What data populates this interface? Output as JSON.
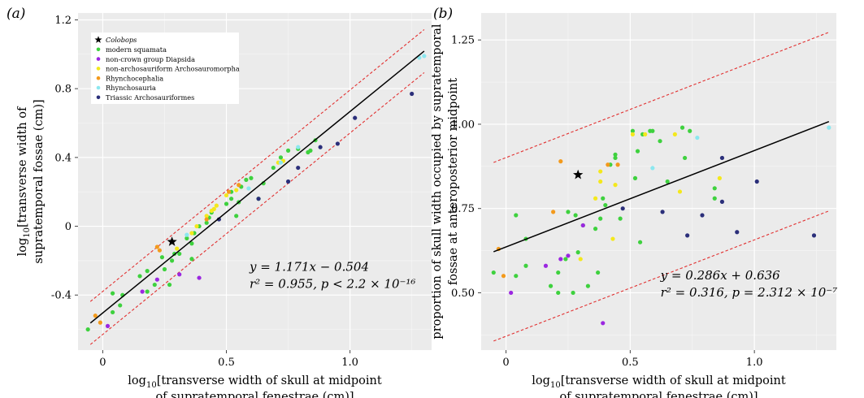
{
  "chart_data": [
    {
      "type": "scatter",
      "panel_label": "(a)",
      "xlabel": [
        "log10[transverse width of skull at midpoint",
        "of supratemporal fenestrae (cm)]"
      ],
      "ylabel": [
        "log10[transverse width of",
        "supratemporal fossae (cm)]"
      ],
      "xlim": [
        -0.1,
        1.33
      ],
      "ylim": [
        -0.72,
        1.24
      ],
      "xticks": [
        0,
        0.5,
        1.0
      ],
      "xtick_labels": [
        "0",
        "0.5",
        "1.0"
      ],
      "yticks": [
        -0.4,
        0,
        0.4,
        0.8,
        1.2
      ],
      "ytick_labels": [
        "-0.4",
        "0",
        "0.4",
        "0.8",
        "1.2"
      ],
      "grid": true,
      "legend_position": "top-left",
      "legend": [
        {
          "label": "Colobops",
          "marker": "star",
          "color": "#000000",
          "italic": true
        },
        {
          "label": "modern squamata",
          "marker": "dot",
          "color": "#3ed13e"
        },
        {
          "label": "non-crown group Diapsida",
          "marker": "dot",
          "color": "#9b27e0"
        },
        {
          "label": "non-archosauriform Archosauromorpha",
          "marker": "dot",
          "color": "#f4e81c"
        },
        {
          "label": "Rhynchocephalia",
          "marker": "dot",
          "color": "#f39a1c"
        },
        {
          "label": "Rhynchosauria",
          "marker": "dot",
          "color": "#8ce7ef"
        },
        {
          "label": "Triassic Archosauriformes",
          "marker": "dot",
          "color": "#2b2f7a"
        }
      ],
      "regression": {
        "slope": 1.171,
        "intercept": -0.504,
        "x_range": [
          -0.05,
          1.3
        ],
        "color": "#000000"
      },
      "confidence_band": {
        "lower_offset": -0.125,
        "upper_offset": 0.125,
        "x_range": [
          -0.05,
          1.3
        ],
        "color": "#e23030",
        "style": "dashed"
      },
      "annotation": [
        "y = 1.171x − 0.504",
        "r² = 0.955, p < 2.2 × 10⁻¹⁶"
      ],
      "series": [
        {
          "name": "Colobops",
          "marker": "star",
          "color": "#000000",
          "points": [
            [
              0.28,
              -0.09
            ]
          ]
        },
        {
          "name": "modern squamata",
          "color": "#3ed13e",
          "points": [
            [
              -0.06,
              -0.6
            ],
            [
              0.04,
              -0.5
            ],
            [
              0.04,
              -0.39
            ],
            [
              0.07,
              -0.46
            ],
            [
              0.08,
              -0.4
            ],
            [
              0.15,
              -0.29
            ],
            [
              0.18,
              -0.26
            ],
            [
              0.18,
              -0.38
            ],
            [
              0.21,
              -0.34
            ],
            [
              0.24,
              -0.18
            ],
            [
              0.25,
              -0.25
            ],
            [
              0.27,
              -0.34
            ],
            [
              0.28,
              -0.2
            ],
            [
              0.29,
              -0.16
            ],
            [
              0.31,
              -0.16
            ],
            [
              0.34,
              -0.07
            ],
            [
              0.36,
              -0.1
            ],
            [
              0.36,
              -0.19
            ],
            [
              0.37,
              -0.04
            ],
            [
              0.39,
              0.0
            ],
            [
              0.42,
              0.02
            ],
            [
              0.43,
              0.05
            ],
            [
              0.44,
              0.08
            ],
            [
              0.5,
              0.13
            ],
            [
              0.52,
              0.16
            ],
            [
              0.52,
              0.2
            ],
            [
              0.54,
              0.06
            ],
            [
              0.55,
              0.14
            ],
            [
              0.56,
              0.23
            ],
            [
              0.58,
              0.27
            ],
            [
              0.6,
              0.28
            ],
            [
              0.63,
              0.16
            ],
            [
              0.65,
              0.25
            ],
            [
              0.69,
              0.34
            ],
            [
              0.72,
              0.4
            ],
            [
              0.75,
              0.44
            ],
            [
              0.79,
              0.45
            ],
            [
              0.83,
              0.43
            ],
            [
              0.84,
              0.44
            ],
            [
              0.86,
              0.5
            ]
          ]
        },
        {
          "name": "non-crown group Diapsida",
          "color": "#9b27e0",
          "points": [
            [
              0.02,
              -0.58
            ],
            [
              0.16,
              -0.38
            ],
            [
              0.22,
              -0.31
            ],
            [
              0.31,
              -0.28
            ],
            [
              0.39,
              -0.3
            ]
          ]
        },
        {
          "name": "non-archosauriform Archosauromorpha",
          "color": "#f4e81c",
          "points": [
            [
              0.3,
              -0.13
            ],
            [
              0.36,
              -0.04
            ],
            [
              0.38,
              0.0
            ],
            [
              0.42,
              0.06
            ],
            [
              0.44,
              0.09
            ],
            [
              0.45,
              0.1
            ],
            [
              0.46,
              0.12
            ],
            [
              0.5,
              0.18
            ],
            [
              0.54,
              0.21
            ],
            [
              0.71,
              0.37
            ],
            [
              0.73,
              0.38
            ]
          ]
        },
        {
          "name": "Rhynchocephalia",
          "color": "#f39a1c",
          "points": [
            [
              -0.03,
              -0.52
            ],
            [
              -0.01,
              -0.56
            ],
            [
              0.22,
              -0.12
            ],
            [
              0.23,
              -0.14
            ],
            [
              0.42,
              0.04
            ],
            [
              0.51,
              0.2
            ],
            [
              0.55,
              0.24
            ]
          ]
        },
        {
          "name": "Rhynchosauria",
          "color": "#8ce7ef",
          "points": [
            [
              0.34,
              -0.05
            ],
            [
              0.59,
              0.22
            ],
            [
              0.72,
              0.37
            ],
            [
              0.79,
              0.46
            ],
            [
              1.28,
              0.98
            ],
            [
              1.3,
              0.99
            ]
          ]
        },
        {
          "name": "Triassic Archosauriformes",
          "color": "#2b2f7a",
          "points": [
            [
              0.47,
              0.04
            ],
            [
              0.63,
              0.16
            ],
            [
              0.75,
              0.26
            ],
            [
              0.79,
              0.34
            ],
            [
              0.88,
              0.46
            ],
            [
              0.95,
              0.48
            ],
            [
              1.02,
              0.63
            ],
            [
              1.25,
              0.77
            ]
          ]
        }
      ]
    },
    {
      "type": "scatter",
      "panel_label": "(b)",
      "xlabel": [
        "log10[transverse width of skull at midpoint",
        "of supratemporal fenestrae (cm)]"
      ],
      "ylabel": [
        "proportion of skull width occupied by supratemporal",
        "fossae at anteroposterior midpoint"
      ],
      "xlim": [
        -0.1,
        1.33
      ],
      "ylim": [
        0.33,
        1.33
      ],
      "xticks": [
        0,
        0.5,
        1.0
      ],
      "xtick_labels": [
        "0",
        "0.5",
        "1.0"
      ],
      "yticks": [
        0.5,
        0.75,
        1.0,
        1.25
      ],
      "ytick_labels": [
        "0.50",
        "0.75",
        "1.00",
        "1.25"
      ],
      "grid": true,
      "regression": {
        "slope": 0.286,
        "intercept": 0.636,
        "x_range": [
          -0.05,
          1.3
        ],
        "color": "#000000"
      },
      "confidence_band": {
        "lower_offset": -0.265,
        "upper_offset": 0.265,
        "x_range": [
          -0.05,
          1.3
        ],
        "color": "#e23030",
        "style": "dashed"
      },
      "annotation": [
        "y = 0.286x + 0.636",
        "r² = 0.316, p = 2.312 × 10⁻⁷"
      ],
      "series": [
        {
          "name": "Colobops",
          "marker": "star",
          "color": "#000000",
          "points": [
            [
              0.29,
              0.85
            ]
          ]
        },
        {
          "name": "modern squamata",
          "color": "#3ed13e",
          "points": [
            [
              -0.05,
              0.56
            ],
            [
              0.04,
              0.55
            ],
            [
              0.04,
              0.73
            ],
            [
              0.08,
              0.66
            ],
            [
              0.08,
              0.58
            ],
            [
              0.18,
              0.52
            ],
            [
              0.21,
              0.5
            ],
            [
              0.21,
              0.56
            ],
            [
              0.24,
              0.6
            ],
            [
              0.25,
              0.74
            ],
            [
              0.27,
              0.5
            ],
            [
              0.28,
              0.73
            ],
            [
              0.29,
              0.62
            ],
            [
              0.31,
              0.7
            ],
            [
              0.33,
              0.52
            ],
            [
              0.36,
              0.69
            ],
            [
              0.37,
              0.56
            ],
            [
              0.38,
              0.72
            ],
            [
              0.39,
              0.78
            ],
            [
              0.4,
              0.76
            ],
            [
              0.42,
              0.88
            ],
            [
              0.44,
              0.9
            ],
            [
              0.44,
              0.91
            ],
            [
              0.46,
              0.72
            ],
            [
              0.51,
              0.98
            ],
            [
              0.52,
              0.84
            ],
            [
              0.53,
              0.92
            ],
            [
              0.54,
              0.65
            ],
            [
              0.55,
              0.97
            ],
            [
              0.58,
              0.98
            ],
            [
              0.59,
              0.98
            ],
            [
              0.62,
              0.95
            ],
            [
              0.65,
              0.83
            ],
            [
              0.71,
              0.99
            ],
            [
              0.72,
              0.9
            ],
            [
              0.74,
              0.98
            ],
            [
              0.84,
              0.81
            ],
            [
              0.84,
              0.78
            ]
          ]
        },
        {
          "name": "non-crown group Diapsida",
          "color": "#9b27e0",
          "points": [
            [
              0.02,
              0.5
            ],
            [
              0.16,
              0.58
            ],
            [
              0.22,
              0.6
            ],
            [
              0.25,
              0.61
            ],
            [
              0.31,
              0.7
            ],
            [
              0.39,
              0.41
            ]
          ]
        },
        {
          "name": "non-archosauriform Archosauromorpha",
          "color": "#f4e81c",
          "points": [
            [
              0.3,
              0.6
            ],
            [
              0.36,
              0.78
            ],
            [
              0.38,
              0.86
            ],
            [
              0.38,
              0.83
            ],
            [
              0.43,
              0.66
            ],
            [
              0.44,
              0.82
            ],
            [
              0.51,
              0.97
            ],
            [
              0.56,
              0.97
            ],
            [
              0.68,
              0.97
            ],
            [
              0.7,
              0.8
            ],
            [
              0.86,
              0.84
            ]
          ]
        },
        {
          "name": "Rhynchocephalia",
          "color": "#f39a1c",
          "points": [
            [
              -0.03,
              0.63
            ],
            [
              -0.01,
              0.55
            ],
            [
              0.19,
              0.74
            ],
            [
              0.22,
              0.89
            ],
            [
              0.41,
              0.88
            ],
            [
              0.45,
              0.88
            ]
          ]
        },
        {
          "name": "Rhynchosauria",
          "color": "#8ce7ef",
          "points": [
            [
              0.59,
              0.87
            ],
            [
              0.77,
              0.96
            ],
            [
              1.3,
              0.99
            ]
          ]
        },
        {
          "name": "Triassic Archosauriformes",
          "color": "#2b2f7a",
          "points": [
            [
              0.47,
              0.75
            ],
            [
              0.63,
              0.74
            ],
            [
              0.73,
              0.67
            ],
            [
              0.79,
              0.73
            ],
            [
              0.87,
              0.77
            ],
            [
              0.87,
              0.9
            ],
            [
              0.93,
              0.68
            ],
            [
              1.01,
              0.83
            ],
            [
              1.24,
              0.67
            ]
          ]
        }
      ]
    }
  ]
}
